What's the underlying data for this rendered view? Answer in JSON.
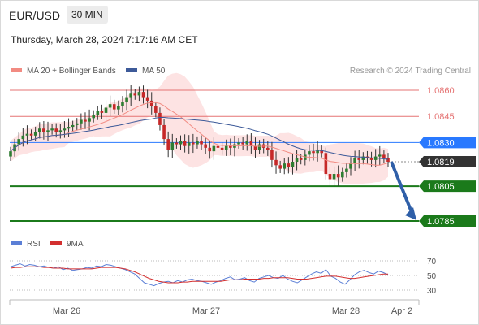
{
  "header": {
    "symbol": "EUR/USD",
    "timeframe": "30 MIN",
    "timestamp": "Thursday, March 28, 2024 7:17:16 AM CET"
  },
  "legend": {
    "ma20_label": "MA 20 + Bollinger Bands",
    "ma50_label": "MA 50",
    "credit": "Research © 2024 Trading Central",
    "rsi_label": "RSI",
    "rsi_ma_label": "9MA"
  },
  "colors": {
    "bull": "#2e7d32",
    "bear": "#c62828",
    "ma20": "#f28b82",
    "ma50": "#3d5a99",
    "bands": "#fde3e3",
    "resistance": "#e57373",
    "support": "#1b7a1b",
    "pivot": "#2979ff",
    "current": "#333333",
    "arrow": "#2f5fa8",
    "rsi": "#5b7fd6",
    "rsi_ma": "#d32f2f"
  },
  "chart_data": {
    "type": "candlestick",
    "x_labels": [
      "Mar 26",
      "Mar 27",
      "Mar 28",
      "Apr 2"
    ],
    "price_levels": [
      {
        "value": 1.086,
        "label": "1.0860",
        "kind": "resistance"
      },
      {
        "value": 1.0845,
        "label": "1.0845",
        "kind": "resistance"
      },
      {
        "value": 1.083,
        "label": "1.0830",
        "kind": "pivot"
      },
      {
        "value": 1.0819,
        "label": "1.0819",
        "kind": "current"
      },
      {
        "value": 1.0805,
        "label": "1.0805",
        "kind": "support"
      },
      {
        "value": 1.0785,
        "label": "1.0785",
        "kind": "support"
      }
    ],
    "forecast": {
      "from": 1.0819,
      "to": 1.0785
    },
    "close_series": [
      1.0825,
      1.0829,
      1.0832,
      1.0834,
      1.0835,
      1.0834,
      1.0836,
      1.0838,
      1.0836,
      1.0837,
      1.0838,
      1.0836,
      1.0837,
      1.0838,
      1.0839,
      1.084,
      1.0841,
      1.0843,
      1.0842,
      1.0844,
      1.0846,
      1.0848,
      1.0847,
      1.085,
      1.0852,
      1.0849,
      1.0851,
      1.0853,
      1.0856,
      1.0858,
      1.0857,
      1.0859,
      1.0856,
      1.0854,
      1.0851,
      1.0847,
      1.084,
      1.0832,
      1.0826,
      1.083,
      1.0829,
      1.0831,
      1.0828,
      1.083,
      1.0829,
      1.0831,
      1.0829,
      1.0827,
      1.0825,
      1.0828,
      1.0827,
      1.0826,
      1.0828,
      1.0827,
      1.0829,
      1.083,
      1.0829,
      1.0831,
      1.0828,
      1.0826,
      1.0829,
      1.0827,
      1.0826,
      1.082,
      1.0817,
      1.0815,
      1.0818,
      1.0816,
      1.0819,
      1.0821,
      1.082,
      1.0823,
      1.0825,
      1.0824,
      1.0826,
      1.0824,
      1.0812,
      1.0809,
      1.0812,
      1.081,
      1.0813,
      1.0815,
      1.0818,
      1.0821,
      1.082,
      1.0822,
      1.0821,
      1.082,
      1.0822,
      1.0823,
      1.0821,
      1.0819
    ],
    "rsi_axis": [
      70,
      50,
      30
    ],
    "rsi": [
      62,
      64,
      66,
      63,
      65,
      64,
      62,
      63,
      61,
      60,
      62,
      58,
      60,
      57,
      58,
      59,
      61,
      60,
      63,
      62,
      65,
      64,
      62,
      60,
      58,
      55,
      52,
      46,
      40,
      38,
      36,
      39,
      41,
      42,
      40,
      43,
      41,
      44,
      45,
      43,
      42,
      40,
      38,
      41,
      43,
      46,
      48,
      44,
      45,
      47,
      43,
      41,
      46,
      48,
      50,
      47,
      46,
      50,
      45,
      42,
      40,
      44,
      48,
      52,
      55,
      53,
      58,
      49,
      46,
      41,
      38,
      44,
      51,
      55,
      57,
      54,
      52,
      56,
      54,
      51
    ],
    "rsi_ma": [
      60,
      61,
      61,
      62,
      62,
      62,
      62,
      61,
      61,
      60,
      60,
      60,
      59,
      59,
      59,
      59,
      59,
      59,
      60,
      61,
      61,
      61,
      61,
      60,
      59,
      57,
      55,
      52,
      49,
      46,
      44,
      42,
      41,
      40,
      40,
      40,
      41,
      41,
      42,
      42,
      42,
      42,
      42,
      42,
      42,
      43,
      44,
      44,
      44,
      45,
      45,
      45,
      45,
      46,
      46,
      47,
      47,
      47,
      47,
      46,
      45,
      45,
      45,
      46,
      47,
      48,
      49,
      49,
      49,
      48,
      47,
      46,
      46,
      47,
      48,
      49,
      50,
      51,
      52,
      52
    ]
  }
}
